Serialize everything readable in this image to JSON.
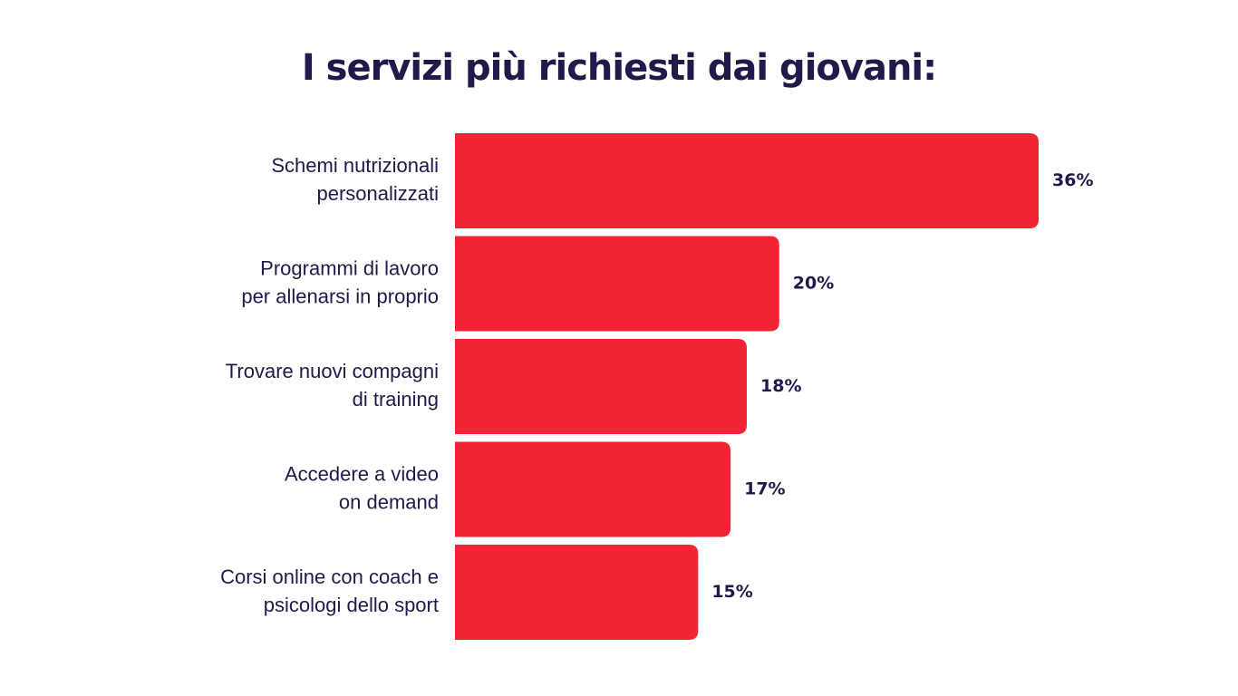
{
  "chart_data": {
    "type": "bar",
    "orientation": "horizontal",
    "title": "I servizi più richiesti dai giovani:",
    "categories": [
      [
        "Schemi nutrizionali",
        "personalizzati"
      ],
      [
        "Programmi di lavoro",
        "per allenarsi in proprio"
      ],
      [
        "Trovare nuovi compagni",
        "di training"
      ],
      [
        "Accedere a video",
        "on demand"
      ],
      [
        "Corsi online con coach e",
        "psicologi dello sport"
      ]
    ],
    "values": [
      36,
      20,
      18,
      17,
      15
    ],
    "value_labels": [
      "36%",
      "20%",
      "18%",
      "17%",
      "15%"
    ],
    "xlim": [
      0,
      36
    ],
    "grid": false,
    "legend": "none",
    "colors": {
      "bar": "#f22334",
      "text": "#1f1a4a",
      "background": "#ffffff"
    }
  }
}
